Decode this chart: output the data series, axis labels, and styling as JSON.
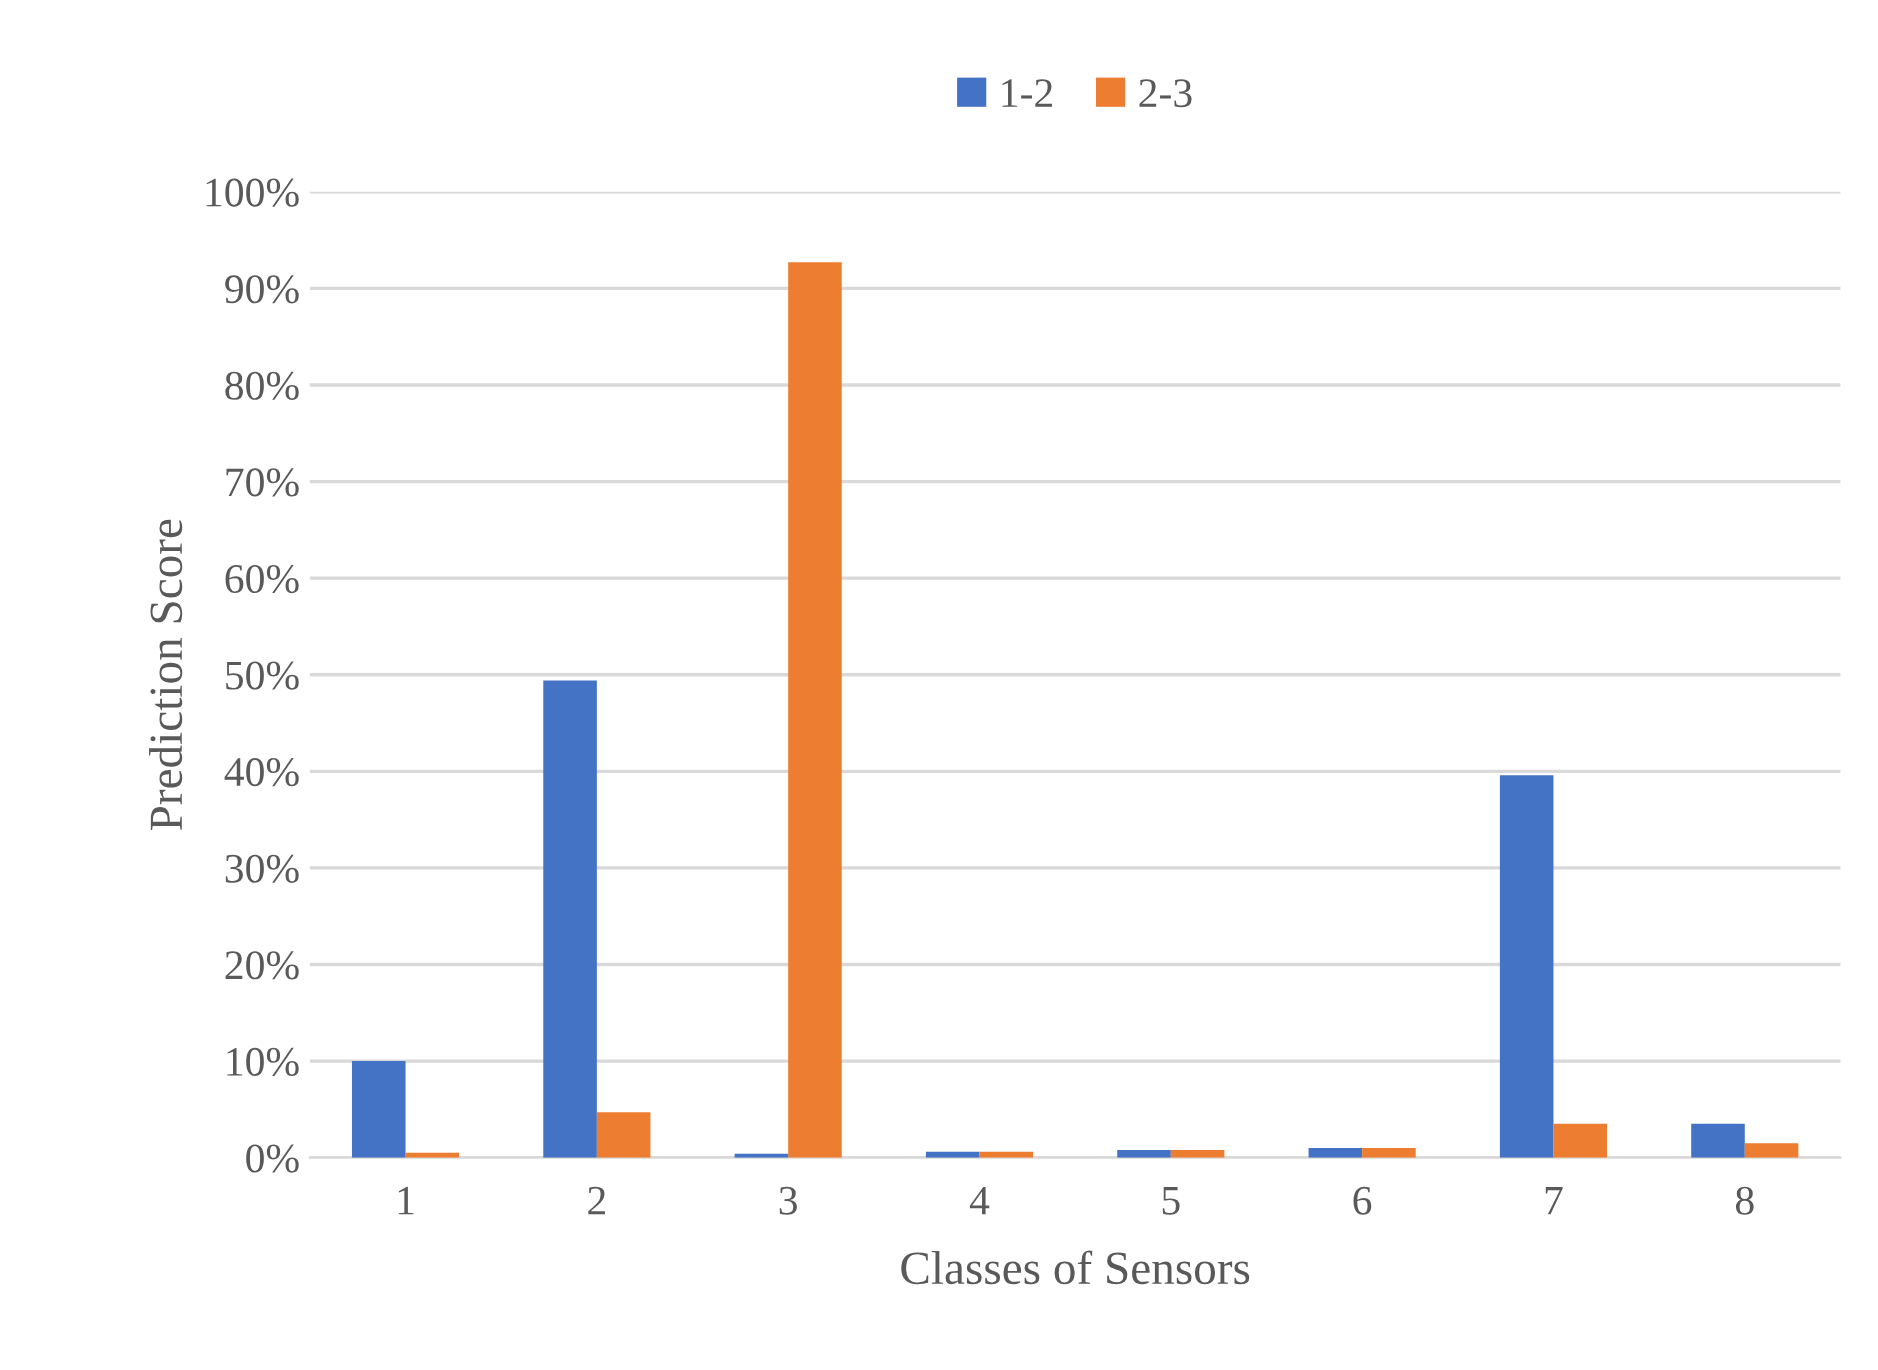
{
  "chart_data": {
    "type": "bar",
    "xlabel": "Classes of Sensors",
    "ylabel": "Prediction Score",
    "categories": [
      "1",
      "2",
      "3",
      "4",
      "5",
      "6",
      "7",
      "8"
    ],
    "series": [
      {
        "name": "1-2",
        "color": "#4472c4",
        "values": [
          10,
          49.4,
          0.4,
          0.6,
          0.8,
          1.0,
          39.6,
          3.5
        ]
      },
      {
        "name": "2-3",
        "color": "#ed7d31",
        "values": [
          0.5,
          4.7,
          92.7,
          0.6,
          0.8,
          1.0,
          3.5,
          1.5
        ]
      }
    ],
    "ylim": [
      0,
      100
    ],
    "yticks": [
      {
        "value": 0,
        "label": "0%"
      },
      {
        "value": 10,
        "label": "10%"
      },
      {
        "value": 20,
        "label": "20%"
      },
      {
        "value": 30,
        "label": "30%"
      },
      {
        "value": 40,
        "label": "40%"
      },
      {
        "value": 50,
        "label": "50%"
      },
      {
        "value": 60,
        "label": "60%"
      },
      {
        "value": 70,
        "label": "70%"
      },
      {
        "value": 80,
        "label": "80%"
      },
      {
        "value": 90,
        "label": "90%"
      },
      {
        "value": 100,
        "label": "100%"
      }
    ],
    "grid": "y",
    "legend": "top"
  }
}
